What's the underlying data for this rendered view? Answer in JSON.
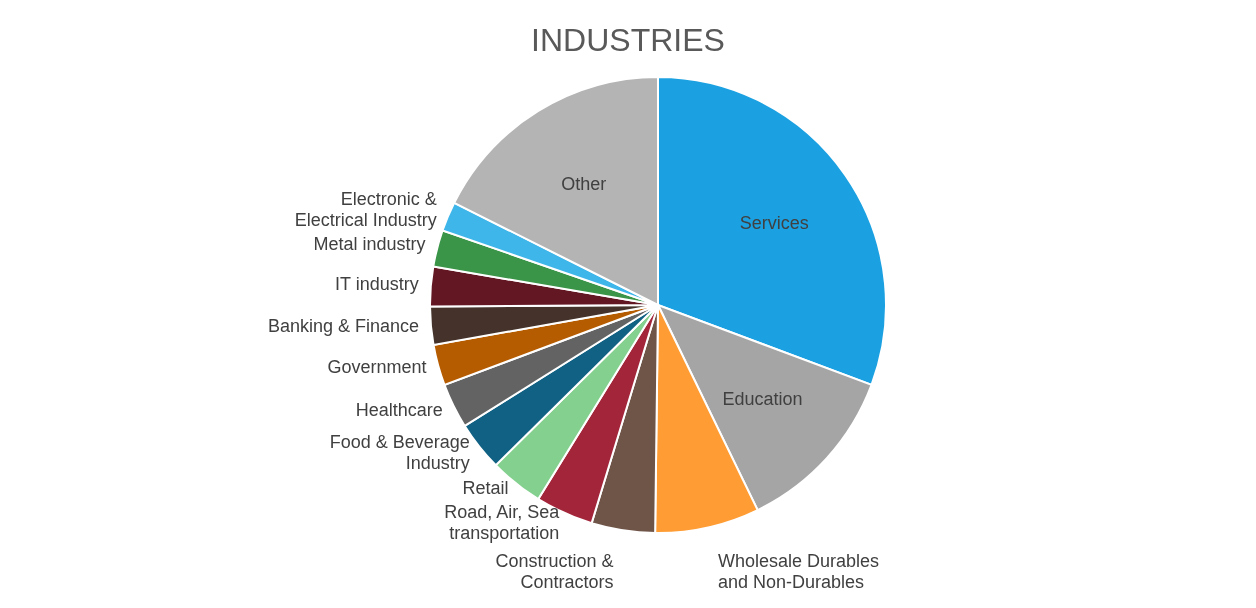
{
  "chart_data": {
    "type": "pie",
    "title": "INDUSTRIES",
    "categories": [
      "Services",
      "Education",
      "Wholesale Durables\nand Non-Durables",
      "Construction &\nContractors",
      "Road, Air, Sea\ntransportation",
      "Retail",
      "Food & Beverage\nIndustry",
      "Healthcare",
      "Government",
      "Banking & Finance",
      "IT industry",
      "Metal industry",
      "Electronic &\nElectrical Industry",
      "Other"
    ],
    "values": [
      30.7,
      12.1,
      7.4,
      4.5,
      4.1,
      3.8,
      3.5,
      3.2,
      2.9,
      2.7,
      2.8,
      2.6,
      2.1,
      17.6
    ],
    "colors": [
      "#1ba1e2",
      "#a5a5a5",
      "#ff9c33",
      "#6f5448",
      "#a3253a",
      "#84d08f",
      "#106183",
      "#636363",
      "#b65c00",
      "#44322b",
      "#621723",
      "#3a9548",
      "#3fb6ea",
      "#b4b4b4"
    ]
  }
}
